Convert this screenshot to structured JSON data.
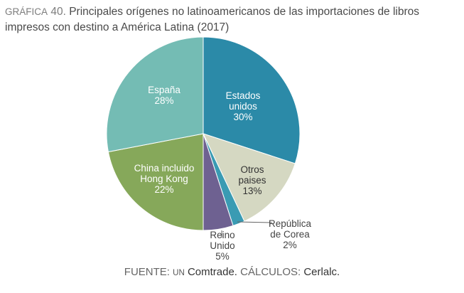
{
  "header": {
    "tag": "GRÁFICA",
    "tag_number": "40.",
    "title": "Principales orígenes no latinoamericanos de las importaciones de libros impresos con destino a América Latina (2017)"
  },
  "footer": {
    "source_label": "FUENTE:",
    "source_un": "UN",
    "source_name": "Comtrade.",
    "calc_label": "CÁLCULOS:",
    "calc_name": "Cerlalc."
  },
  "colors": {
    "estados_unidos": "#2b8aa8",
    "otros_paises": "#d5d8c2",
    "republica_de_corea": "#3a9bb3",
    "reino_unido": "#6e6191",
    "china_hong_kong": "#86a85a",
    "espana": "#74bcb4"
  },
  "chart_data": {
    "type": "pie",
    "title": "Principales orígenes no latinoamericanos de las importaciones de libros impresos con destino a América Latina (2017)",
    "slices": [
      {
        "lines": [
          "Estados",
          "unidos"
        ],
        "percent_label": "30%",
        "value": 30,
        "color": "#2b8aa8",
        "label_color": "#ffffff",
        "label_outside": false
      },
      {
        "lines": [
          "Otros",
          "paises"
        ],
        "percent_label": "13%",
        "value": 13,
        "color": "#d5d8c2",
        "label_color": "#333333",
        "label_outside": false
      },
      {
        "lines": [
          "República",
          "de Corea"
        ],
        "percent_label": "2%",
        "value": 2,
        "color": "#3a9bb3",
        "label_color": "#444444",
        "label_outside": true
      },
      {
        "lines": [
          "Reino",
          "Unido"
        ],
        "percent_label": "5%",
        "value": 5,
        "color": "#6e6191",
        "label_color": "#444444",
        "label_outside": true
      },
      {
        "lines": [
          "China incluido",
          "Hong Kong"
        ],
        "percent_label": "22%",
        "value": 22,
        "color": "#86a85a",
        "label_color": "#ffffff",
        "label_outside": false
      },
      {
        "lines": [
          "España"
        ],
        "percent_label": "28%",
        "value": 28,
        "color": "#74bcb4",
        "label_color": "#ffffff",
        "label_outside": false
      }
    ]
  }
}
